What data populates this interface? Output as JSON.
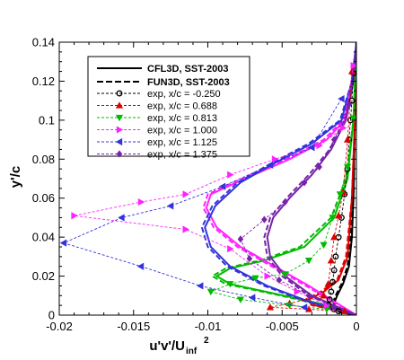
{
  "chart_data": {
    "type": "scatter",
    "xlabel": "u'v'/U",
    "xlabel_sub": "inf",
    "xlabel_sup": "2",
    "ylabel": "y'/c",
    "xlim": [
      -0.02,
      0.0
    ],
    "ylim": [
      0.0,
      0.14
    ],
    "xticks": [
      {
        "v": -0.02,
        "label": "-0.02"
      },
      {
        "v": -0.015,
        "label": "-0.015"
      },
      {
        "v": -0.01,
        "label": "-0.01"
      },
      {
        "v": -0.005,
        "label": "-0.005"
      },
      {
        "v": 0.0,
        "label": "0"
      }
    ],
    "yticks": [
      {
        "v": 0.0,
        "label": "0"
      },
      {
        "v": 0.02,
        "label": "0.02"
      },
      {
        "v": 0.04,
        "label": "0.04"
      },
      {
        "v": 0.06,
        "label": "0.06"
      },
      {
        "v": 0.08,
        "label": "0.08"
      },
      {
        "v": 0.1,
        "label": "0.1"
      },
      {
        "v": 0.12,
        "label": "0.12"
      },
      {
        "v": 0.14,
        "label": "0.14"
      }
    ],
    "grid": false,
    "legend_position": "top-left",
    "model_legend": [
      {
        "label": "CFL3D, SST-2003",
        "dash": "solid"
      },
      {
        "label": "FUN3D, SST-2003",
        "dash": "dashed"
      }
    ],
    "series": [
      {
        "name": "exp, x/c = -0.250",
        "color": "#000000",
        "marker": "circle",
        "exp": [
          [
            -0.0002,
            0.124
          ],
          [
            -0.0003,
            0.11
          ],
          [
            -0.0004,
            0.1
          ],
          [
            -0.0005,
            0.09
          ],
          [
            -0.0006,
            0.075
          ],
          [
            -0.0008,
            0.062
          ],
          [
            -0.001,
            0.05
          ],
          [
            -0.0012,
            0.04
          ],
          [
            -0.0014,
            0.03
          ],
          [
            -0.0015,
            0.023
          ],
          [
            -0.0016,
            0.017
          ],
          [
            -0.0017,
            0.012
          ],
          [
            -0.0018,
            0.008
          ],
          [
            -0.0019,
            0.005
          ],
          [
            -0.0015,
            0.003
          ],
          [
            -0.0012,
            0.002
          ]
        ],
        "cfl3d": [
          [
            0.0,
            0.14
          ],
          [
            -0.0001,
            0.1
          ],
          [
            -0.0002,
            0.06
          ],
          [
            -0.0003,
            0.04
          ],
          [
            -0.0005,
            0.025
          ],
          [
            -0.0009,
            0.016
          ],
          [
            -0.0013,
            0.01
          ],
          [
            -0.0015,
            0.006
          ],
          [
            -0.0014,
            0.003
          ],
          [
            -0.001,
            0.0015
          ],
          [
            -0.0004,
            0.0007
          ],
          [
            0.0,
            0.0
          ]
        ],
        "fun3d": [
          [
            0.0,
            0.14
          ],
          [
            -0.0001,
            0.1
          ],
          [
            -0.0002,
            0.06
          ],
          [
            -0.0004,
            0.04
          ],
          [
            -0.0006,
            0.025
          ],
          [
            -0.001,
            0.016
          ],
          [
            -0.0014,
            0.01
          ],
          [
            -0.0016,
            0.006
          ],
          [
            -0.0015,
            0.003
          ],
          [
            -0.0011,
            0.0015
          ],
          [
            -0.0005,
            0.0007
          ],
          [
            0.0,
            0.0
          ]
        ]
      },
      {
        "name": "exp, x/c = 0.688",
        "color": "#dd0000",
        "marker": "triangle-up",
        "exp": [
          [
            -0.0003,
            0.125
          ],
          [
            -0.0006,
            0.09
          ],
          [
            -0.0009,
            0.063
          ],
          [
            -0.0012,
            0.051
          ],
          [
            -0.0015,
            0.04
          ],
          [
            -0.0017,
            0.028
          ],
          [
            -0.0019,
            0.016
          ],
          [
            -0.0022,
            0.01
          ],
          [
            -0.0045,
            0.006
          ],
          [
            -0.0058,
            0.004
          ],
          [
            -0.0032,
            0.003
          ],
          [
            -0.0008,
            0.002
          ]
        ],
        "cfl3d": [
          [
            0.0,
            0.14
          ],
          [
            -0.0001,
            0.1
          ],
          [
            -0.0003,
            0.06
          ],
          [
            -0.0006,
            0.03
          ],
          [
            -0.0012,
            0.018
          ],
          [
            -0.0022,
            0.012
          ],
          [
            -0.0032,
            0.008
          ],
          [
            -0.0028,
            0.005
          ],
          [
            -0.0015,
            0.003
          ],
          [
            -0.0006,
            0.0015
          ],
          [
            0.0,
            0.0
          ]
        ],
        "fun3d": [
          [
            0.0,
            0.14
          ],
          [
            -0.0001,
            0.1
          ],
          [
            -0.0003,
            0.06
          ],
          [
            -0.0007,
            0.03
          ],
          [
            -0.0013,
            0.018
          ],
          [
            -0.0024,
            0.012
          ],
          [
            -0.0034,
            0.008
          ],
          [
            -0.003,
            0.005
          ],
          [
            -0.0016,
            0.003
          ],
          [
            -0.0007,
            0.0015
          ],
          [
            0.0,
            0.0
          ]
        ]
      },
      {
        "name": "exp, x/c = 0.813",
        "color": "#00bb00",
        "marker": "triangle-down",
        "exp": [
          [
            -0.0002,
            0.101
          ],
          [
            -0.0006,
            0.076
          ],
          [
            -0.0011,
            0.062
          ],
          [
            -0.0016,
            0.05
          ],
          [
            -0.0022,
            0.036
          ],
          [
            -0.0032,
            0.028
          ],
          [
            -0.0048,
            0.021
          ],
          [
            -0.0068,
            0.019
          ],
          [
            -0.0085,
            0.016
          ],
          [
            -0.0098,
            0.012
          ],
          [
            -0.0078,
            0.008
          ],
          [
            -0.0045,
            0.005
          ],
          [
            -0.002,
            0.003
          ]
        ],
        "cfl3d": [
          [
            0.0,
            0.14
          ],
          [
            -0.0002,
            0.1
          ],
          [
            -0.0006,
            0.07
          ],
          [
            -0.0015,
            0.05
          ],
          [
            -0.0035,
            0.035
          ],
          [
            -0.0062,
            0.028
          ],
          [
            -0.0085,
            0.024
          ],
          [
            -0.0094,
            0.02
          ],
          [
            -0.0085,
            0.016
          ],
          [
            -0.0055,
            0.011
          ],
          [
            -0.0025,
            0.006
          ],
          [
            -0.001,
            0.003
          ],
          [
            0.0,
            0.0
          ]
        ],
        "fun3d": [
          [
            0.0,
            0.14
          ],
          [
            -0.0002,
            0.1
          ],
          [
            -0.0007,
            0.07
          ],
          [
            -0.0017,
            0.05
          ],
          [
            -0.0038,
            0.035
          ],
          [
            -0.0065,
            0.028
          ],
          [
            -0.0088,
            0.024
          ],
          [
            -0.0097,
            0.02
          ],
          [
            -0.0088,
            0.016
          ],
          [
            -0.0057,
            0.011
          ],
          [
            -0.0027,
            0.006
          ],
          [
            -0.0011,
            0.003
          ],
          [
            0.0,
            0.0
          ]
        ]
      },
      {
        "name": "exp, x/c = 1.000",
        "color": "#ff22ff",
        "marker": "triangle-right",
        "exp": [
          [
            -0.0002,
            0.128
          ],
          [
            -0.0009,
            0.096
          ],
          [
            -0.0025,
            0.087
          ],
          [
            -0.0055,
            0.08
          ],
          [
            -0.0085,
            0.072
          ],
          [
            -0.0115,
            0.062
          ],
          [
            -0.0145,
            0.058
          ],
          [
            -0.019,
            0.051
          ],
          [
            -0.0115,
            0.044
          ],
          [
            -0.0085,
            0.034
          ],
          [
            -0.006,
            0.02
          ],
          [
            -0.004,
            0.012
          ],
          [
            -0.002,
            0.005
          ]
        ],
        "cfl3d": [
          [
            0.0,
            0.14
          ],
          [
            -0.0002,
            0.12
          ],
          [
            -0.0008,
            0.1
          ],
          [
            -0.002,
            0.09
          ],
          [
            -0.0045,
            0.08
          ],
          [
            -0.0075,
            0.07
          ],
          [
            -0.0098,
            0.062
          ],
          [
            -0.0101,
            0.055
          ],
          [
            -0.0094,
            0.045
          ],
          [
            -0.0078,
            0.035
          ],
          [
            -0.0055,
            0.025
          ],
          [
            -0.0032,
            0.015
          ],
          [
            -0.0015,
            0.007
          ],
          [
            0.0,
            0.0
          ]
        ],
        "fun3d": [
          [
            0.0,
            0.14
          ],
          [
            -0.0002,
            0.12
          ],
          [
            -0.0009,
            0.1
          ],
          [
            -0.0022,
            0.09
          ],
          [
            -0.0047,
            0.08
          ],
          [
            -0.0077,
            0.07
          ],
          [
            -0.01,
            0.062
          ],
          [
            -0.0103,
            0.055
          ],
          [
            -0.0096,
            0.045
          ],
          [
            -0.008,
            0.035
          ],
          [
            -0.0057,
            0.025
          ],
          [
            -0.0034,
            0.015
          ],
          [
            -0.0016,
            0.007
          ],
          [
            0.0,
            0.0
          ]
        ]
      },
      {
        "name": "exp, x/c = 1.125",
        "color": "#3333dd",
        "marker": "triangle-left",
        "exp": [
          [
            -0.001,
            0.111
          ],
          [
            -0.003,
            0.086
          ],
          [
            -0.0058,
            0.077
          ],
          [
            -0.009,
            0.066
          ],
          [
            -0.0125,
            0.056
          ],
          [
            -0.0158,
            0.05
          ],
          [
            -0.0197,
            0.037
          ],
          [
            -0.0145,
            0.025
          ],
          [
            -0.0105,
            0.015
          ],
          [
            -0.007,
            0.009
          ],
          [
            -0.0035,
            0.004
          ]
        ],
        "cfl3d": [
          [
            0.0,
            0.14
          ],
          [
            -0.0003,
            0.12
          ],
          [
            -0.001,
            0.1
          ],
          [
            -0.003,
            0.088
          ],
          [
            -0.0055,
            0.078
          ],
          [
            -0.0078,
            0.068
          ],
          [
            -0.0095,
            0.056
          ],
          [
            -0.0102,
            0.045
          ],
          [
            -0.0098,
            0.035
          ],
          [
            -0.0085,
            0.025
          ],
          [
            -0.006,
            0.015
          ],
          [
            -0.0032,
            0.007
          ],
          [
            0.0,
            0.0
          ]
        ],
        "fun3d": [
          [
            0.0,
            0.14
          ],
          [
            -0.0003,
            0.12
          ],
          [
            -0.0011,
            0.1
          ],
          [
            -0.0032,
            0.088
          ],
          [
            -0.0057,
            0.078
          ],
          [
            -0.008,
            0.068
          ],
          [
            -0.0097,
            0.056
          ],
          [
            -0.0104,
            0.045
          ],
          [
            -0.01,
            0.035
          ],
          [
            -0.0087,
            0.025
          ],
          [
            -0.0062,
            0.015
          ],
          [
            -0.0034,
            0.007
          ],
          [
            0.0,
            0.0
          ]
        ]
      },
      {
        "name": "exp, x/c = 1.375",
        "color": "#7722aa",
        "marker": "diamond",
        "exp": [
          [
            -0.0005,
            0.108
          ],
          [
            -0.0015,
            0.09
          ],
          [
            -0.0025,
            0.076
          ],
          [
            -0.0035,
            0.068
          ],
          [
            -0.0048,
            0.058
          ],
          [
            -0.0062,
            0.049
          ],
          [
            -0.0078,
            0.039
          ],
          [
            -0.0072,
            0.029
          ],
          [
            -0.0052,
            0.018
          ],
          [
            -0.0032,
            0.01
          ],
          [
            -0.0015,
            0.004
          ]
        ],
        "cfl3d": [
          [
            0.0,
            0.14
          ],
          [
            -0.0002,
            0.12
          ],
          [
            -0.0007,
            0.1
          ],
          [
            -0.0017,
            0.085
          ],
          [
            -0.003,
            0.072
          ],
          [
            -0.0045,
            0.06
          ],
          [
            -0.0056,
            0.05
          ],
          [
            -0.006,
            0.04
          ],
          [
            -0.0058,
            0.03
          ],
          [
            -0.0048,
            0.02
          ],
          [
            -0.003,
            0.01
          ],
          [
            -0.0012,
            0.004
          ],
          [
            0.0,
            0.0
          ]
        ],
        "fun3d": [
          [
            0.0,
            0.14
          ],
          [
            -0.0002,
            0.12
          ],
          [
            -0.0008,
            0.1
          ],
          [
            -0.0018,
            0.085
          ],
          [
            -0.0032,
            0.072
          ],
          [
            -0.0047,
            0.06
          ],
          [
            -0.0058,
            0.05
          ],
          [
            -0.0062,
            0.04
          ],
          [
            -0.006,
            0.03
          ],
          [
            -0.005,
            0.02
          ],
          [
            -0.0032,
            0.01
          ],
          [
            -0.0013,
            0.004
          ],
          [
            0.0,
            0.0
          ]
        ]
      }
    ]
  }
}
